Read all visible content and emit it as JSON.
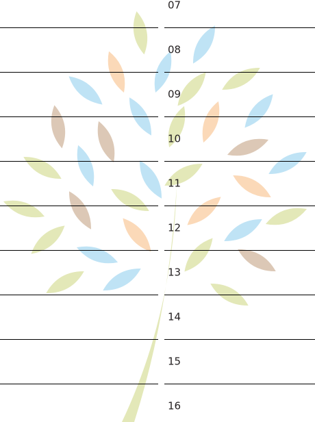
{
  "hours": [
    "07",
    "08",
    "09",
    "10",
    "11",
    "12",
    "13",
    "14",
    "15",
    "16"
  ]
}
